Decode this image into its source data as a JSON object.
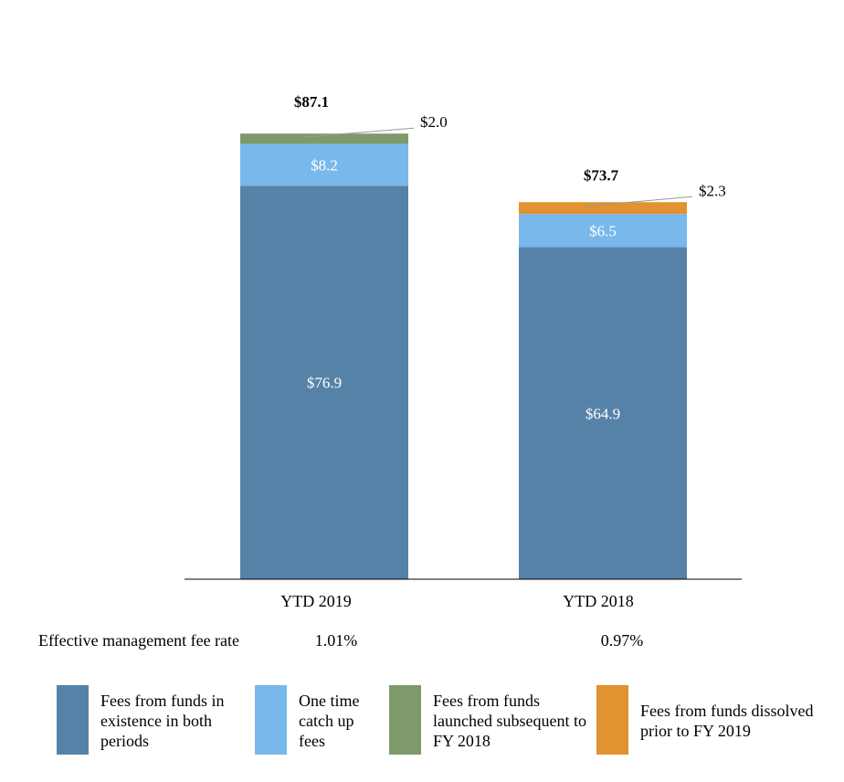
{
  "chart_data": {
    "type": "bar",
    "stacked": true,
    "categories": [
      "YTD 2019",
      "YTD 2018"
    ],
    "series": [
      {
        "name": "Fees from funds in existence in both periods",
        "values": [
          76.9,
          64.9
        ],
        "labels": [
          "$76.9",
          "$64.9"
        ],
        "color": "#5682A8"
      },
      {
        "name": "One time catch up fees",
        "values": [
          8.2,
          6.5
        ],
        "labels": [
          "$8.2",
          "$6.5"
        ],
        "color": "#78B8EA"
      },
      {
        "name": "Fees from funds launched subsequent to FY 2018",
        "values": [
          2.0,
          0
        ],
        "labels": [
          "$2.0",
          ""
        ],
        "color": "#7E9A6A"
      },
      {
        "name": "Fees from funds dissolved prior to FY 2019",
        "values": [
          0,
          2.3
        ],
        "labels": [
          "",
          "$2.3"
        ],
        "color": "#E2922E"
      }
    ],
    "totals": [
      87.1,
      73.7
    ],
    "total_labels": [
      "$87.1",
      "$73.7"
    ],
    "ylim": [
      0,
      100
    ],
    "grid": false,
    "legend_position": "bottom"
  },
  "fee_rate": {
    "label": "Effective management fee rate",
    "values": [
      "1.01%",
      "0.97%"
    ]
  }
}
